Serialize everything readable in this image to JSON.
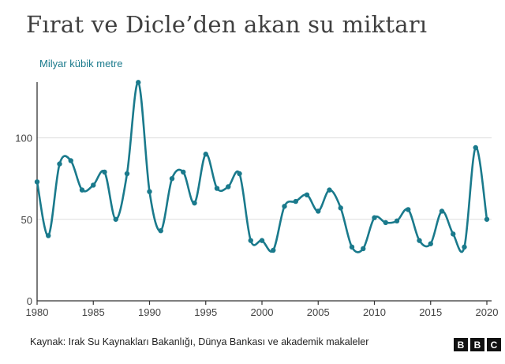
{
  "title": "Fırat ve Dicle’den akan su miktarı",
  "unit_label": "Milyar kübik metre",
  "source": "Kaynak: Irak Su Kaynakları Bakanlığı, Dünya Bankası ve akademik makaleler",
  "logo_letters": [
    "B",
    "B",
    "C"
  ],
  "colors": {
    "line": "#1a7a8c",
    "title": "#404040",
    "axis": "#333333",
    "grid": "#dddddd"
  },
  "chart_data": {
    "type": "line",
    "title": "Fırat ve Dicle’den akan su miktarı",
    "ylabel": "Milyar kübik metre",
    "xlabel": "",
    "xlim": [
      1980,
      2020
    ],
    "ylim": [
      0,
      140
    ],
    "x_ticks": [
      "1980",
      "1985",
      "1990",
      "1995",
      "2000",
      "2005",
      "2010",
      "2015",
      "2020"
    ],
    "y_ticks": [
      "0",
      "50",
      "100"
    ],
    "grid": "horizontal",
    "x": [
      1980,
      1981,
      1982,
      1983,
      1984,
      1985,
      1986,
      1987,
      1988,
      1989,
      1990,
      1991,
      1992,
      1993,
      1994,
      1995,
      1996,
      1997,
      1998,
      1999,
      2000,
      2001,
      2002,
      2003,
      2004,
      2005,
      2006,
      2007,
      2008,
      2009,
      2010,
      2011,
      2012,
      2013,
      2014,
      2015,
      2016,
      2017,
      2018,
      2019,
      2020
    ],
    "values": [
      73,
      40,
      84,
      86,
      68,
      71,
      79,
      50,
      78,
      134,
      67,
      43,
      75,
      79,
      60,
      90,
      69,
      70,
      78,
      37,
      37,
      31,
      58,
      61,
      65,
      55,
      68,
      57,
      33,
      32,
      51,
      48,
      49,
      56,
      37,
      35,
      55,
      41,
      33,
      94,
      50
    ]
  }
}
